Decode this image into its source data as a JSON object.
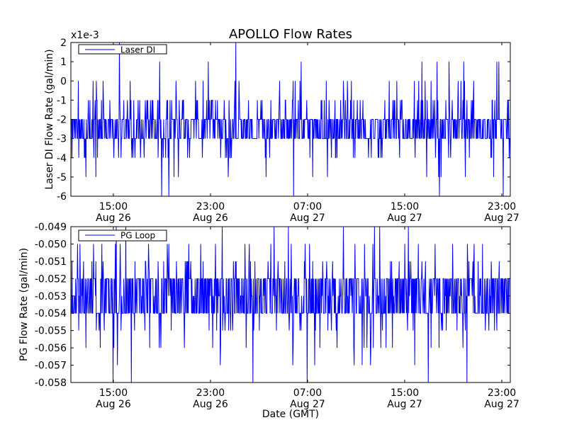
{
  "figure": {
    "title": "APOLLO Flow Rates",
    "xlabel": "Date (GMT)"
  },
  "chart_data": [
    {
      "type": "line",
      "ylabel": "Laser DI Flow Rate (gal/min)",
      "scale_label": "x1e-3",
      "legend": {
        "label": "Laser DI",
        "placement": "top-left"
      },
      "ylim": [
        -6,
        2
      ],
      "yticks": [
        2,
        1,
        0,
        -1,
        -2,
        -3,
        -4,
        -5,
        -6
      ],
      "ytick_labels": [
        "2",
        "1",
        "0",
        "-1",
        "-2",
        "-3",
        "-4",
        "-5",
        "-6"
      ],
      "xticks": [
        {
          "time": "15:00",
          "date": "Aug 26",
          "hours": 15
        },
        {
          "time": "23:00",
          "date": "Aug 26",
          "hours": 23
        },
        {
          "time": "07:00",
          "date": "Aug 27",
          "hours": 31
        },
        {
          "time": "15:00",
          "date": "Aug 27",
          "hours": 39
        },
        {
          "time": "23:00",
          "date": "Aug 27",
          "hours": 47
        }
      ],
      "xlim_hours": [
        11.5,
        47.7
      ],
      "series": [
        {
          "name": "Laser DI",
          "color": "#0000ff",
          "levels": [
            2,
            1,
            0,
            -1,
            -2,
            -3,
            -4,
            -5,
            -6
          ],
          "level_weights": [
            0.003,
            0.02,
            0.07,
            0.17,
            0.3,
            0.26,
            0.13,
            0.035,
            0.012
          ],
          "typical_band": [
            -3,
            -2
          ],
          "samples": 1100,
          "seed": 7
        }
      ]
    },
    {
      "type": "line",
      "ylabel": "PG Flow Rate (gal/min)",
      "legend": {
        "label": "PG Loop",
        "placement": "top-left"
      },
      "ylim": [
        -0.058,
        -0.049
      ],
      "yticks": [
        -0.049,
        -0.05,
        -0.051,
        -0.052,
        -0.053,
        -0.054,
        -0.055,
        -0.056,
        -0.057,
        -0.058
      ],
      "ytick_labels": [
        "-0.049",
        "-0.050",
        "-0.051",
        "-0.052",
        "-0.053",
        "-0.054",
        "-0.055",
        "-0.056",
        "-0.057",
        "-0.058"
      ],
      "xticks": [
        {
          "time": "15:00",
          "date": "Aug 26",
          "hours": 15
        },
        {
          "time": "23:00",
          "date": "Aug 26",
          "hours": 23
        },
        {
          "time": "07:00",
          "date": "Aug 27",
          "hours": 31
        },
        {
          "time": "15:00",
          "date": "Aug 27",
          "hours": 39
        },
        {
          "time": "23:00",
          "date": "Aug 27",
          "hours": 47
        }
      ],
      "xlim_hours": [
        11.5,
        47.7
      ],
      "series": [
        {
          "name": "PG Loop",
          "color": "#0000ff",
          "levels": [
            -0.049,
            -0.05,
            -0.051,
            -0.052,
            -0.053,
            -0.054,
            -0.055,
            -0.056,
            -0.057,
            -0.058
          ],
          "level_weights": [
            0.015,
            0.045,
            0.09,
            0.21,
            0.27,
            0.21,
            0.085,
            0.045,
            0.02,
            0.01
          ],
          "typical_band": [
            -0.054,
            -0.052
          ],
          "samples": 1100,
          "seed": 13
        }
      ]
    }
  ]
}
